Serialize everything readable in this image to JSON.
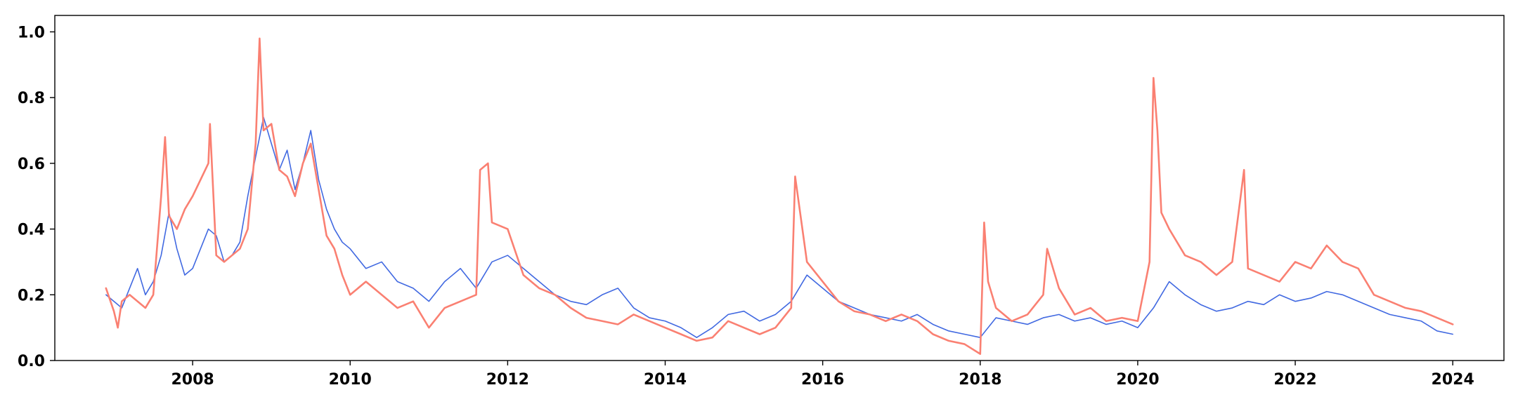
{
  "chart_data": {
    "type": "line",
    "title": "",
    "xlabel": "",
    "ylabel": "",
    "xlim": [
      2006.25,
      2024.65
    ],
    "ylim": [
      0.0,
      1.05
    ],
    "grid": false,
    "legend": "none",
    "x_ticks": [
      {
        "value": 2008,
        "label": "2008"
      },
      {
        "value": 2010,
        "label": "2010"
      },
      {
        "value": 2012,
        "label": "2012"
      },
      {
        "value": 2014,
        "label": "2014"
      },
      {
        "value": 2016,
        "label": "2016"
      },
      {
        "value": 2018,
        "label": "2018"
      },
      {
        "value": 2020,
        "label": "2020"
      },
      {
        "value": 2022,
        "label": "2022"
      },
      {
        "value": 2024,
        "label": "2024"
      }
    ],
    "y_ticks": [
      {
        "value": 0.0,
        "label": "0.0"
      },
      {
        "value": 0.2,
        "label": "0.2"
      },
      {
        "value": 0.4,
        "label": "0.4"
      },
      {
        "value": 0.6,
        "label": "0.6"
      },
      {
        "value": 0.8,
        "label": "0.8"
      },
      {
        "value": 1.0,
        "label": "1.0"
      }
    ],
    "series": [
      {
        "color": "#4169e1",
        "x": [
          2006.9,
          2007.0,
          2007.1,
          2007.2,
          2007.3,
          2007.4,
          2007.5,
          2007.6,
          2007.7,
          2007.8,
          2007.9,
          2008.0,
          2008.1,
          2008.2,
          2008.3,
          2008.4,
          2008.5,
          2008.6,
          2008.7,
          2008.8,
          2008.9,
          2009.0,
          2009.1,
          2009.2,
          2009.3,
          2009.4,
          2009.5,
          2009.6,
          2009.7,
          2009.8,
          2009.9,
          2010.0,
          2010.2,
          2010.4,
          2010.6,
          2010.8,
          2011.0,
          2011.2,
          2011.4,
          2011.6,
          2011.8,
          2012.0,
          2012.2,
          2012.4,
          2012.6,
          2012.8,
          2013.0,
          2013.2,
          2013.4,
          2013.6,
          2013.8,
          2014.0,
          2014.2,
          2014.4,
          2014.6,
          2014.8,
          2015.0,
          2015.2,
          2015.4,
          2015.6,
          2015.8,
          2016.0,
          2016.2,
          2016.4,
          2016.6,
          2016.8,
          2017.0,
          2017.2,
          2017.4,
          2017.6,
          2017.8,
          2018.0,
          2018.2,
          2018.4,
          2018.6,
          2018.8,
          2019.0,
          2019.2,
          2019.4,
          2019.6,
          2019.8,
          2020.0,
          2020.2,
          2020.4,
          2020.6,
          2020.8,
          2021.0,
          2021.2,
          2021.4,
          2021.6,
          2021.8,
          2022.0,
          2022.2,
          2022.4,
          2022.6,
          2022.8,
          2023.0,
          2023.2,
          2023.4,
          2023.6,
          2023.8,
          2024.0
        ],
        "values": [
          0.2,
          0.18,
          0.16,
          0.22,
          0.28,
          0.2,
          0.24,
          0.32,
          0.45,
          0.34,
          0.26,
          0.28,
          0.34,
          0.4,
          0.38,
          0.3,
          0.32,
          0.36,
          0.5,
          0.62,
          0.74,
          0.66,
          0.58,
          0.64,
          0.52,
          0.6,
          0.7,
          0.55,
          0.46,
          0.4,
          0.36,
          0.34,
          0.28,
          0.3,
          0.24,
          0.22,
          0.18,
          0.24,
          0.28,
          0.22,
          0.3,
          0.32,
          0.28,
          0.24,
          0.2,
          0.18,
          0.17,
          0.2,
          0.22,
          0.16,
          0.13,
          0.12,
          0.1,
          0.07,
          0.1,
          0.14,
          0.15,
          0.12,
          0.14,
          0.18,
          0.26,
          0.22,
          0.18,
          0.16,
          0.14,
          0.13,
          0.12,
          0.14,
          0.11,
          0.09,
          0.08,
          0.07,
          0.13,
          0.12,
          0.11,
          0.13,
          0.14,
          0.12,
          0.13,
          0.11,
          0.12,
          0.1,
          0.16,
          0.24,
          0.2,
          0.17,
          0.15,
          0.16,
          0.18,
          0.17,
          0.2,
          0.18,
          0.19,
          0.21,
          0.2,
          0.18,
          0.16,
          0.14,
          0.13,
          0.12,
          0.09,
          0.08
        ]
      },
      {
        "color": "#fa8072",
        "x": [
          2006.9,
          2007.0,
          2007.05,
          2007.1,
          2007.2,
          2007.3,
          2007.4,
          2007.5,
          2007.6,
          2007.65,
          2007.7,
          2007.8,
          2007.9,
          2008.0,
          2008.1,
          2008.2,
          2008.22,
          2008.3,
          2008.4,
          2008.5,
          2008.6,
          2008.7,
          2008.8,
          2008.85,
          2008.9,
          2009.0,
          2009.1,
          2009.2,
          2009.3,
          2009.4,
          2009.5,
          2009.6,
          2009.7,
          2009.8,
          2009.9,
          2010.0,
          2010.2,
          2010.4,
          2010.6,
          2010.8,
          2011.0,
          2011.2,
          2011.4,
          2011.6,
          2011.65,
          2011.75,
          2011.8,
          2012.0,
          2012.2,
          2012.4,
          2012.6,
          2012.8,
          2013.0,
          2013.2,
          2013.4,
          2013.6,
          2013.8,
          2014.0,
          2014.2,
          2014.4,
          2014.6,
          2014.8,
          2015.0,
          2015.2,
          2015.4,
          2015.6,
          2015.65,
          2015.8,
          2016.0,
          2016.2,
          2016.4,
          2016.6,
          2016.8,
          2017.0,
          2017.2,
          2017.4,
          2017.6,
          2017.8,
          2018.0,
          2018.05,
          2018.1,
          2018.2,
          2018.4,
          2018.6,
          2018.8,
          2018.85,
          2019.0,
          2019.2,
          2019.4,
          2019.6,
          2019.8,
          2020.0,
          2020.15,
          2020.2,
          2020.25,
          2020.3,
          2020.4,
          2020.6,
          2020.8,
          2021.0,
          2021.2,
          2021.35,
          2021.4,
          2021.6,
          2021.8,
          2022.0,
          2022.2,
          2022.4,
          2022.6,
          2022.8,
          2023.0,
          2023.2,
          2023.4,
          2023.6,
          2023.8,
          2024.0
        ],
        "values": [
          0.22,
          0.15,
          0.1,
          0.18,
          0.2,
          0.18,
          0.16,
          0.2,
          0.5,
          0.68,
          0.44,
          0.4,
          0.46,
          0.5,
          0.55,
          0.6,
          0.72,
          0.32,
          0.3,
          0.32,
          0.34,
          0.4,
          0.66,
          0.98,
          0.7,
          0.72,
          0.58,
          0.56,
          0.5,
          0.6,
          0.66,
          0.52,
          0.38,
          0.34,
          0.26,
          0.2,
          0.24,
          0.2,
          0.16,
          0.18,
          0.1,
          0.16,
          0.18,
          0.2,
          0.58,
          0.6,
          0.42,
          0.4,
          0.26,
          0.22,
          0.2,
          0.16,
          0.13,
          0.12,
          0.11,
          0.14,
          0.12,
          0.1,
          0.08,
          0.06,
          0.07,
          0.12,
          0.1,
          0.08,
          0.1,
          0.16,
          0.56,
          0.3,
          0.24,
          0.18,
          0.15,
          0.14,
          0.12,
          0.14,
          0.12,
          0.08,
          0.06,
          0.05,
          0.02,
          0.42,
          0.24,
          0.16,
          0.12,
          0.14,
          0.2,
          0.34,
          0.22,
          0.14,
          0.16,
          0.12,
          0.13,
          0.12,
          0.3,
          0.86,
          0.7,
          0.45,
          0.4,
          0.32,
          0.3,
          0.26,
          0.3,
          0.58,
          0.28,
          0.26,
          0.24,
          0.3,
          0.28,
          0.35,
          0.3,
          0.28,
          0.2,
          0.18,
          0.16,
          0.15,
          0.13,
          0.11
        ]
      }
    ]
  }
}
